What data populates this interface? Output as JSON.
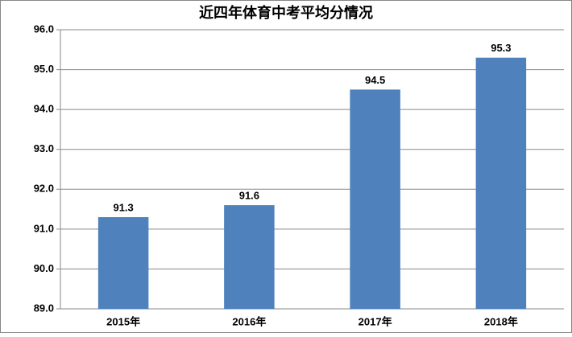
{
  "chart_data": {
    "type": "bar",
    "title": "近四年体育中考平均分情况",
    "categories": [
      "2015年",
      "2016年",
      "2017年",
      "2018年"
    ],
    "values": [
      91.3,
      91.6,
      94.5,
      95.3
    ],
    "color": "#4f81bd",
    "ylim": [
      89,
      96
    ],
    "yticks": [
      {
        "value": 89,
        "label": "89.0"
      },
      {
        "value": 90,
        "label": "90.0"
      },
      {
        "value": 91,
        "label": "91.0"
      },
      {
        "value": 92,
        "label": "92.0"
      },
      {
        "value": 93,
        "label": "93.0"
      },
      {
        "value": 94,
        "label": "94.0"
      },
      {
        "value": 95,
        "label": "95.0"
      },
      {
        "value": 96,
        "label": "96.0"
      }
    ],
    "grid": true
  }
}
